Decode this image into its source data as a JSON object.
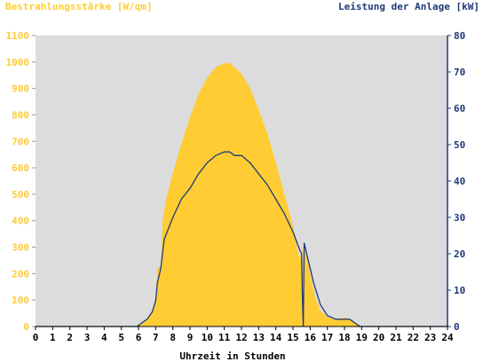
{
  "chart_data": {
    "type": "area",
    "y_left_label": "Bestrahlungsstärke [W/qm]",
    "y_right_label": "Leistung der Anlage [kW]",
    "xlabel": "Uhrzeit in Stunden",
    "x_ticks": [
      "0",
      "1",
      "2",
      "3",
      "4",
      "5",
      "6",
      "7",
      "8",
      "9",
      "10",
      "11",
      "12",
      "13",
      "14",
      "15",
      "16",
      "17",
      "18",
      "19",
      "20",
      "21",
      "22",
      "23",
      "24"
    ],
    "y_left_ticks": [
      "0",
      "100",
      "200",
      "300",
      "400",
      "500",
      "600",
      "700",
      "800",
      "900",
      "1000",
      "1100"
    ],
    "y_right_ticks": [
      "0",
      "10",
      "20",
      "30",
      "40",
      "50",
      "60",
      "70",
      "80"
    ],
    "xlim": [
      0,
      24
    ],
    "y_left_lim": [
      0,
      1100
    ],
    "y_right_lim": [
      0,
      80
    ],
    "colors": {
      "irradiance": "#ffcc33",
      "power": "#1f3a7a",
      "plot_bg": "#dcdcdc",
      "left_axis": "#ffcc33",
      "right_axis": "#1f3a7a"
    },
    "series": [
      {
        "name": "Bestrahlungsstärke [W/qm]",
        "axis": "left",
        "x": [
          0,
          5.9,
          6.2,
          6.5,
          6.8,
          7.0,
          7.1,
          7.3,
          7.4,
          7.6,
          8.0,
          8.5,
          9.0,
          9.5,
          10.0,
          10.5,
          11.0,
          11.3,
          11.6,
          12.0,
          12.5,
          13.0,
          13.5,
          14.0,
          14.5,
          15.0,
          15.4,
          15.55,
          15.6,
          15.7,
          15.8,
          16.0,
          16.3,
          16.6,
          17.0,
          17.5,
          18.0,
          18.3,
          18.6,
          18.9,
          19.0,
          24
        ],
        "values": [
          0,
          0,
          10,
          25,
          60,
          100,
          220,
          230,
          400,
          480,
          580,
          690,
          790,
          880,
          940,
          980,
          995,
          995,
          980,
          955,
          900,
          820,
          730,
          620,
          500,
          380,
          250,
          300,
          40,
          300,
          270,
          200,
          110,
          60,
          35,
          25,
          35,
          30,
          15,
          5,
          0,
          0
        ]
      },
      {
        "name": "Leistung der Anlage [kW]",
        "axis": "right",
        "x": [
          0,
          5.9,
          6.2,
          6.5,
          6.8,
          7.0,
          7.1,
          7.2,
          7.3,
          7.5,
          8.0,
          8.5,
          9.0,
          9.5,
          10.0,
          10.5,
          11.0,
          11.3,
          11.6,
          12.0,
          12.5,
          13.0,
          13.5,
          14.0,
          14.5,
          15.0,
          15.4,
          15.5,
          15.55,
          15.6,
          15.65,
          15.7,
          15.9,
          16.2,
          16.6,
          17.0,
          17.5,
          18.0,
          18.3,
          18.6,
          18.9,
          19.0,
          24
        ],
        "values": [
          0,
          0,
          1,
          2,
          4,
          7,
          12,
          14,
          16,
          24,
          30,
          35,
          38,
          42,
          45,
          47,
          48,
          48,
          47,
          47,
          45,
          42,
          39,
          35,
          31,
          26,
          21,
          20,
          8,
          0,
          23,
          22,
          18,
          12,
          6,
          3,
          2,
          2,
          2,
          1,
          0,
          0,
          0
        ]
      }
    ]
  }
}
